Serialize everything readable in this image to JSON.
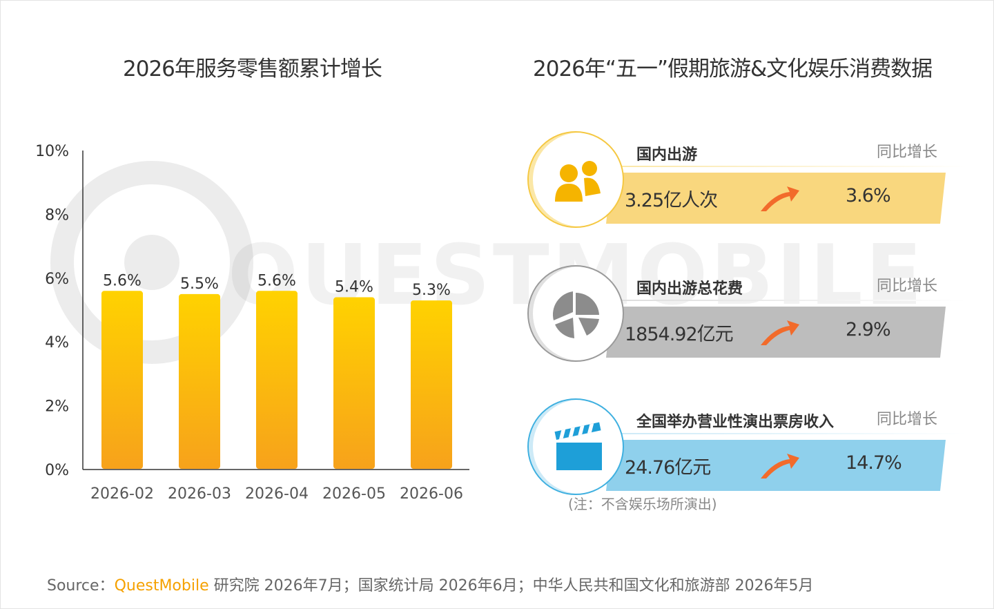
{
  "chart_data": {
    "type": "bar",
    "title": "2026年服务零售额累计增长",
    "categories": [
      "2026-02",
      "2026-03",
      "2026-04",
      "2026-05",
      "2026-06"
    ],
    "values": [
      5.6,
      5.5,
      5.6,
      5.4,
      5.3
    ],
    "value_labels": [
      "5.6%",
      "5.5%",
      "5.6%",
      "5.4%",
      "5.3%"
    ],
    "ylim": [
      0,
      10
    ],
    "yticks": [
      0,
      2,
      4,
      6,
      8,
      10
    ],
    "ytick_labels": [
      "0%",
      "2%",
      "4%",
      "6%",
      "8%",
      "10%"
    ],
    "xlabel": "",
    "ylabel": "",
    "grid": false,
    "bar_color_top": "#FFD200",
    "bar_color_bottom": "#F7A21B"
  },
  "right_panel": {
    "title": "2026年“五一”假期旅游&文化娱乐消费数据",
    "cards": [
      {
        "name": "国内出游",
        "yoy_label": "同比增长",
        "value": "3.25亿人次",
        "growth": "3.6%",
        "icon": "people-icon",
        "color": "#F9D77E",
        "accent": "#F5B400"
      },
      {
        "name": "国内出游总花费",
        "yoy_label": "同比增长",
        "value": "1854.92亿元",
        "growth": "2.9%",
        "icon": "pie-chart-icon",
        "color": "#BDBDBD",
        "accent": "#8C8C8C"
      },
      {
        "name": "全国举办营业性演出票房收入",
        "yoy_label": "同比增长",
        "value": "24.76亿元",
        "growth": "14.7%",
        "icon": "clapperboard-icon",
        "color": "#8FD0EC",
        "accent": "#1E9FD8"
      }
    ],
    "note": "(注：不含娱乐场所演出)"
  },
  "watermark": "QUESTMOBILE",
  "source": {
    "prefix": "Source：",
    "brand": "QuestMobile",
    "rest": " 研究院 2026年7月；国家统计局 2026年6月；中华人民共和国文化和旅游部 2026年5月"
  }
}
